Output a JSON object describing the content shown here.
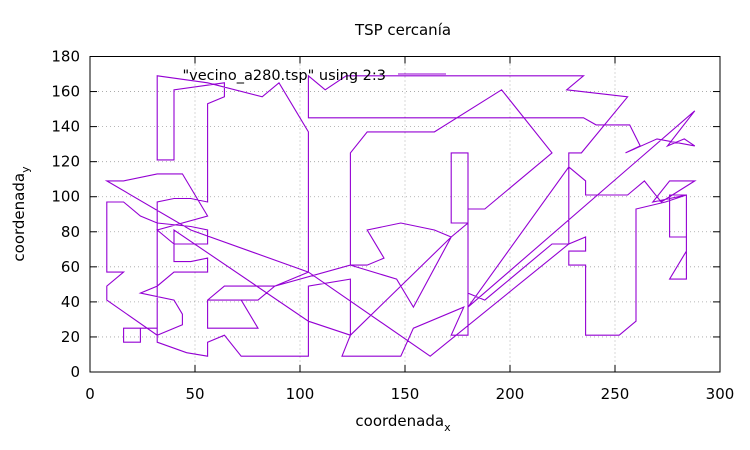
{
  "chart_data": {
    "type": "line",
    "title": "TSP cercanía",
    "xlabel": "coordenada",
    "xlabel_sub": "x",
    "ylabel": "coordenada",
    "ylabel_sub": "y",
    "xlim": [
      0,
      300
    ],
    "ylim": [
      0,
      180
    ],
    "xticks": [
      0,
      50,
      100,
      150,
      200,
      250,
      300
    ],
    "yticks": [
      0,
      20,
      40,
      60,
      80,
      100,
      120,
      140,
      160,
      180
    ],
    "grid": true,
    "legend_position": "top-left",
    "series": [
      {
        "name": "\"vecino_a280.tsp\" using 2:3",
        "color": "#9400d3",
        "points": [
          [
            288,
            149
          ],
          [
            275,
            129
          ],
          [
            283,
            133
          ],
          [
            288,
            129
          ],
          [
            270,
            133
          ],
          [
            255,
            125
          ],
          [
            262,
            129
          ],
          [
            257,
            141
          ],
          [
            241,
            141
          ],
          [
            235,
            145
          ],
          [
            104,
            145
          ],
          [
            104,
            169
          ],
          [
            112,
            161
          ],
          [
            122,
            169
          ],
          [
            235,
            169
          ],
          [
            227,
            161
          ],
          [
            256,
            157
          ],
          [
            234,
            125
          ],
          [
            228,
            125
          ],
          [
            228,
            73
          ],
          [
            220,
            73
          ],
          [
            196,
            49
          ],
          [
            188,
            41
          ],
          [
            180,
            45
          ],
          [
            180,
            125
          ],
          [
            172,
            125
          ],
          [
            172,
            85
          ],
          [
            180,
            85
          ],
          [
            180,
            21
          ],
          [
            172,
            21
          ],
          [
            178,
            37
          ],
          [
            154,
            25
          ],
          [
            148,
            9
          ],
          [
            120,
            9
          ],
          [
            124,
            21
          ],
          [
            124,
            53
          ],
          [
            104,
            49
          ],
          [
            104,
            9
          ],
          [
            90,
            9
          ],
          [
            72,
            9
          ],
          [
            64,
            21
          ],
          [
            56,
            17
          ],
          [
            56,
            9
          ],
          [
            46,
            11
          ],
          [
            32,
            17
          ],
          [
            32,
            25
          ],
          [
            24,
            25
          ],
          [
            24,
            17
          ],
          [
            16,
            17
          ],
          [
            16,
            25
          ],
          [
            32,
            25
          ],
          [
            32,
            97
          ],
          [
            40,
            99
          ],
          [
            48,
            99
          ],
          [
            56,
            97
          ],
          [
            56,
            153
          ],
          [
            64,
            157
          ],
          [
            64,
            165
          ],
          [
            40,
            161
          ],
          [
            40,
            121
          ],
          [
            32,
            121
          ],
          [
            32,
            169
          ],
          [
            56,
            165
          ],
          [
            82,
            157
          ],
          [
            90,
            165
          ],
          [
            104,
            137
          ],
          [
            104,
            57
          ],
          [
            88,
            49
          ],
          [
            64,
            49
          ],
          [
            56,
            41
          ],
          [
            56,
            25
          ],
          [
            80,
            25
          ],
          [
            72,
            41
          ],
          [
            56,
            41
          ],
          [
            80,
            41
          ],
          [
            88,
            49
          ],
          [
            124,
            61
          ],
          [
            132,
            61
          ],
          [
            140,
            65
          ],
          [
            132,
            81
          ],
          [
            148,
            85
          ],
          [
            164,
            81
          ],
          [
            172,
            77
          ],
          [
            154,
            37
          ],
          [
            146,
            53
          ],
          [
            124,
            61
          ],
          [
            124,
            125
          ],
          [
            132,
            137
          ],
          [
            164,
            137
          ],
          [
            196,
            161
          ],
          [
            220,
            125
          ],
          [
            188,
            93
          ],
          [
            180,
            93
          ],
          [
            180,
            85
          ],
          [
            172,
            77
          ],
          [
            124,
            21
          ],
          [
            104,
            29
          ],
          [
            40,
            81
          ],
          [
            40,
            63
          ],
          [
            48,
            63
          ],
          [
            56,
            65
          ],
          [
            56,
            57
          ],
          [
            40,
            57
          ],
          [
            32,
            49
          ],
          [
            24,
            45
          ],
          [
            40,
            41
          ],
          [
            44,
            33
          ],
          [
            44,
            27
          ],
          [
            32,
            21
          ],
          [
            8,
            41
          ],
          [
            8,
            49
          ],
          [
            16,
            57
          ],
          [
            8,
            57
          ],
          [
            8,
            97
          ],
          [
            16,
            97
          ],
          [
            24,
            89
          ],
          [
            32,
            85
          ],
          [
            48,
            83
          ],
          [
            56,
            81
          ],
          [
            56,
            73
          ],
          [
            40,
            73
          ],
          [
            32,
            81
          ],
          [
            56,
            89
          ],
          [
            44,
            113
          ],
          [
            32,
            113
          ],
          [
            16,
            109
          ],
          [
            8,
            109
          ],
          [
            48,
            81
          ],
          [
            104,
            57
          ],
          [
            162,
            9
          ],
          [
            228,
            73
          ],
          [
            236,
            77
          ],
          [
            236,
            69
          ],
          [
            228,
            69
          ],
          [
            228,
            61
          ],
          [
            236,
            61
          ],
          [
            236,
            21
          ],
          [
            252,
            21
          ],
          [
            260,
            29
          ],
          [
            260,
            93
          ],
          [
            274,
            97
          ],
          [
            284,
            101
          ],
          [
            276,
            101
          ],
          [
            276,
            93
          ],
          [
            276,
            85
          ],
          [
            276,
            77
          ],
          [
            284,
            77
          ],
          [
            284,
            69
          ],
          [
            276,
            53
          ],
          [
            284,
            53
          ],
          [
            284,
            101
          ],
          [
            268,
            97
          ],
          [
            276,
            109
          ],
          [
            288,
            109
          ],
          [
            272,
            97
          ],
          [
            264,
            109
          ],
          [
            256,
            101
          ],
          [
            236,
            101
          ],
          [
            236,
            109
          ],
          [
            228,
            117
          ],
          [
            180,
            37
          ],
          [
            288,
            149
          ]
        ]
      }
    ]
  }
}
